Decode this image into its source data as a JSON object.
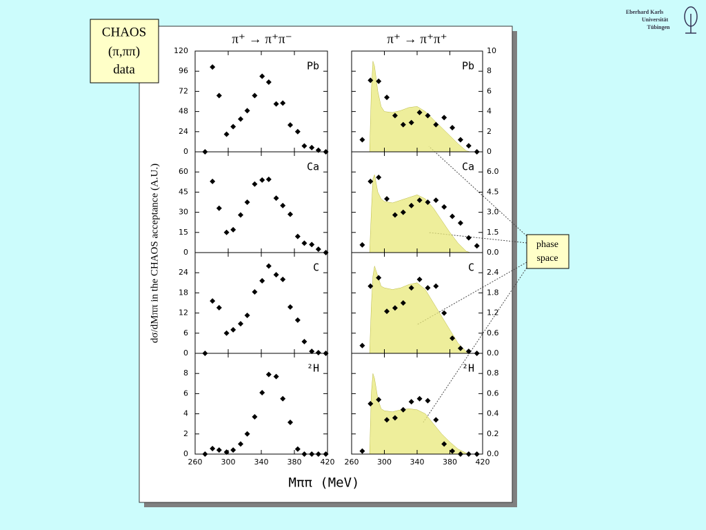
{
  "slide": {
    "label_box": [
      "CHAOS",
      "(π,ππ)",
      "data"
    ],
    "callout": [
      "phase",
      "space"
    ],
    "logo": [
      "Eberhard Karls",
      "Universität",
      "Tübingen"
    ]
  },
  "figure": {
    "column_titles": [
      "π⁺ → π⁺π⁻",
      "π⁺ → π⁺π⁺"
    ],
    "x_label": "Mππ  (MeV)",
    "y_label": "dσ/dMππ in the CHAOS acceptance (A.U.)"
  },
  "chart_data": [
    {
      "type": "scatter",
      "label": "Pb",
      "color": "#000000",
      "xlim": [
        260,
        420
      ],
      "xticks": [
        260,
        300,
        340,
        380,
        420
      ],
      "ylim": [
        0,
        120
      ],
      "yticks": [
        0,
        24,
        48,
        72,
        96,
        120
      ],
      "x": [
        272,
        281,
        289,
        298,
        306,
        315,
        323,
        332,
        341,
        349,
        358,
        366,
        375,
        384,
        392,
        401,
        409,
        418
      ],
      "values": [
        0,
        101,
        67,
        21,
        30,
        39,
        49,
        67,
        90,
        83,
        57,
        58,
        32,
        24,
        7,
        5,
        2,
        0
      ]
    },
    {
      "type": "scatter",
      "label": "Ca",
      "color": "#000000",
      "xlim": [
        260,
        420
      ],
      "xticks": [
        260,
        300,
        340,
        380,
        420
      ],
      "ylim": [
        0,
        75
      ],
      "yticks": [
        0,
        15,
        30,
        45,
        60
      ],
      "x": [
        272,
        281,
        289,
        298,
        306,
        315,
        323,
        332,
        341,
        349,
        358,
        366,
        375,
        384,
        392,
        401,
        409,
        418
      ],
      "values": [
        null,
        53,
        33,
        15,
        17,
        28,
        37.5,
        51,
        54,
        54.5,
        40.5,
        35,
        28.5,
        12,
        7,
        6,
        2.5,
        0
      ]
    },
    {
      "type": "scatter",
      "label": "C",
      "color": "#000000",
      "xlim": [
        260,
        420
      ],
      "xticks": [
        260,
        300,
        340,
        380,
        420
      ],
      "ylim": [
        0,
        30
      ],
      "yticks": [
        0,
        6,
        12,
        18,
        24
      ],
      "x": [
        272,
        281,
        289,
        298,
        306,
        315,
        323,
        332,
        341,
        349,
        358,
        366,
        375,
        384,
        392,
        401,
        409,
        418
      ],
      "values": [
        0,
        15.6,
        13.6,
        6,
        7,
        8.8,
        11.3,
        18.3,
        21.6,
        26,
        23.4,
        22,
        13.8,
        9.9,
        3.5,
        0.6,
        0.2,
        0
      ]
    },
    {
      "type": "scatter",
      "label": "²H",
      "color": "#000000",
      "xlim": [
        260,
        420
      ],
      "xticks": [
        260,
        300,
        340,
        380,
        420
      ],
      "ylim": [
        0,
        10
      ],
      "yticks": [
        0,
        2,
        4,
        6,
        8
      ],
      "x": [
        272,
        281,
        289,
        298,
        306,
        315,
        323,
        332,
        341,
        349,
        358,
        366,
        375,
        384,
        392,
        401,
        409,
        418
      ],
      "values": [
        0,
        0.55,
        0.4,
        0.2,
        0.4,
        1.0,
        2.0,
        3.7,
        6.1,
        7.9,
        7.7,
        5.5,
        3.15,
        0.5,
        0,
        0,
        0,
        0
      ]
    },
    {
      "type": "scatter",
      "label": "Pb",
      "color": "#000000",
      "yaxis_side": "right",
      "xlim": [
        260,
        420
      ],
      "xticks": [
        260,
        300,
        340,
        380,
        420
      ],
      "ylim": [
        0,
        10
      ],
      "yticks": [
        0,
        2,
        4,
        6,
        8,
        10
      ],
      "x": [
        273,
        283,
        293,
        303,
        313,
        323,
        333,
        343,
        353,
        363,
        373,
        383,
        393,
        403,
        413
      ],
      "values": [
        1.2,
        7.1,
        7.0,
        5.4,
        3.6,
        2.7,
        2.9,
        3.9,
        3.6,
        2.7,
        3.4,
        2.4,
        1.2,
        0.6,
        0
      ],
      "shade": {
        "color": "#e8e87a",
        "x": [
          282,
          284,
          286,
          288,
          292,
          296,
          300,
          310,
          320,
          330,
          340,
          350,
          360,
          370,
          380,
          390,
          400,
          405
        ],
        "values": [
          0,
          6,
          9.0,
          8.5,
          6,
          4.5,
          4.0,
          3.9,
          4.1,
          4.4,
          4.5,
          4.0,
          3.2,
          2.4,
          1.6,
          0.8,
          0.1,
          0
        ]
      }
    },
    {
      "type": "scatter",
      "label": "Ca",
      "color": "#000000",
      "yaxis_side": "right",
      "xlim": [
        260,
        420
      ],
      "xticks": [
        260,
        300,
        340,
        380,
        420
      ],
      "ylim": [
        0,
        7.5
      ],
      "yticks": [
        {
          "value": 0,
          "label": "0.0"
        },
        1.5,
        {
          "value": 3,
          "label": "3.0"
        },
        4.5,
        {
          "value": 6,
          "label": "6.0"
        }
      ],
      "x": [
        273,
        283,
        293,
        303,
        313,
        323,
        333,
        343,
        353,
        363,
        373,
        383,
        393,
        403,
        413
      ],
      "values": [
        0.57,
        5.3,
        5.6,
        4.0,
        2.8,
        3.0,
        3.5,
        3.9,
        3.75,
        3.9,
        3.4,
        2.7,
        2.2,
        1.1,
        0.5
      ],
      "shade": {
        "color": "#e8e87a",
        "x": [
          282,
          284,
          286,
          288,
          292,
          296,
          300,
          310,
          320,
          330,
          340,
          350,
          360,
          370,
          380,
          390,
          400,
          405
        ],
        "values": [
          0,
          3,
          5.5,
          5.8,
          4.5,
          4.0,
          3.8,
          3.7,
          3.9,
          4.1,
          4.3,
          4.0,
          3.3,
          2.4,
          1.5,
          0.7,
          0.1,
          0
        ]
      }
    },
    {
      "type": "scatter",
      "label": "C",
      "color": "#000000",
      "yaxis_side": "right",
      "xlim": [
        260,
        420
      ],
      "xticks": [
        260,
        300,
        340,
        380,
        420
      ],
      "ylim": [
        0,
        3.0
      ],
      "yticks": [
        {
          "value": 0,
          "label": "0.0"
        },
        0.6,
        1.2,
        1.8,
        2.4
      ],
      "x": [
        273,
        283,
        293,
        303,
        313,
        323,
        333,
        343,
        353,
        363,
        373,
        383,
        393,
        403,
        413
      ],
      "values": [
        0.23,
        2.0,
        2.25,
        1.25,
        1.35,
        1.5,
        1.95,
        2.2,
        1.95,
        2.0,
        1.2,
        0.45,
        0.15,
        0.06,
        0
      ],
      "shade": {
        "color": "#e8e87a",
        "x": [
          282,
          284,
          286,
          288,
          292,
          296,
          300,
          310,
          320,
          330,
          340,
          350,
          360,
          370,
          380,
          390,
          400,
          405
        ],
        "values": [
          0,
          1.4,
          2.3,
          2.6,
          2.3,
          2.0,
          1.95,
          1.9,
          1.95,
          2.05,
          2.1,
          1.9,
          1.5,
          1.1,
          0.7,
          0.3,
          0.05,
          0
        ]
      }
    },
    {
      "type": "scatter",
      "label": "²H",
      "color": "#000000",
      "yaxis_side": "right",
      "xlim": [
        260,
        420
      ],
      "xticks": [
        260,
        300,
        340,
        380,
        420
      ],
      "ylim": [
        0,
        1.0
      ],
      "yticks": [
        {
          "value": 0,
          "label": "0.0"
        },
        0.2,
        0.4,
        0.6,
        0.8
      ],
      "x": [
        273,
        283,
        293,
        303,
        313,
        323,
        333,
        343,
        353,
        363,
        373,
        383,
        393,
        403,
        413
      ],
      "values": [
        0.03,
        0.5,
        0.54,
        0.34,
        0.36,
        0.44,
        0.52,
        0.55,
        0.53,
        0.34,
        0.1,
        0.03,
        0,
        0,
        0
      ],
      "shade": {
        "color": "#e8e87a",
        "x": [
          282,
          284,
          286,
          288,
          292,
          296,
          300,
          310,
          320,
          330,
          340,
          350,
          360,
          370,
          380,
          390,
          400,
          405
        ],
        "values": [
          0,
          0.6,
          0.8,
          0.75,
          0.55,
          0.45,
          0.43,
          0.42,
          0.44,
          0.45,
          0.44,
          0.4,
          0.3,
          0.2,
          0.12,
          0.05,
          0.01,
          0
        ]
      }
    }
  ]
}
